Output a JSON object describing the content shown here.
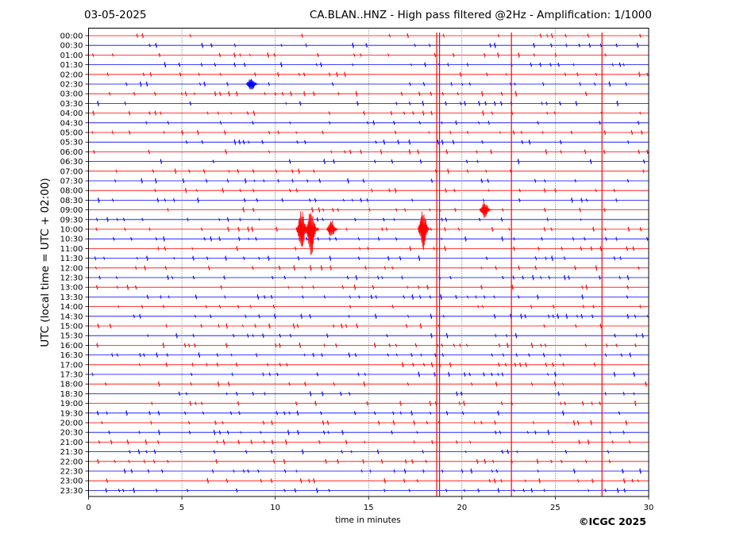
{
  "header": {
    "date": "03-05-2025",
    "title": "CA.BLAN..HNZ - High pass filtered @2Hz - Amplification: 1/1000"
  },
  "footer": {
    "copyright": "©ICGC 2025"
  },
  "colors": {
    "red_trace": "#ff0000",
    "blue_trace": "#0000ff",
    "grid": "#000000",
    "background": "#ffffff"
  },
  "chart_data": {
    "type": "line",
    "title": "CA.BLAN..HNZ - High pass filtered @2Hz - Amplification: 1/1000",
    "xlabel": "time in minutes",
    "ylabel": "UTC (local time = UTC + 02:00)",
    "xlim": [
      0,
      30
    ],
    "xticks": [
      "0",
      "5",
      "10",
      "15",
      "20",
      "25",
      "30"
    ],
    "vertical_gridlines_minutes": [
      5,
      10,
      15,
      20,
      25
    ],
    "grid": "vertical dotted",
    "rows": [
      "00:00",
      "00:30",
      "01:00",
      "01:30",
      "02:00",
      "02:30",
      "03:00",
      "03:30",
      "04:00",
      "04:30",
      "05:00",
      "05:30",
      "06:00",
      "06:30",
      "07:00",
      "07:30",
      "08:00",
      "08:30",
      "09:00",
      "09:30",
      "10:00",
      "10:30",
      "11:00",
      "11:30",
      "12:00",
      "12:30",
      "13:00",
      "13:30",
      "14:00",
      "14:30",
      "15:00",
      "15:30",
      "16:00",
      "16:30",
      "17:00",
      "17:30",
      "18:00",
      "18:30",
      "19:00",
      "19:30",
      "20:00",
      "20:30",
      "21:00",
      "21:30",
      "22:00",
      "22:30",
      "23:00",
      "23:30"
    ],
    "row_colors": [
      "red",
      "blue"
    ],
    "events": [
      {
        "row": "10:00",
        "minute": 11.5,
        "amplitude": 0.9
      },
      {
        "row": "10:00",
        "minute": 12.0,
        "amplitude": 1.2
      },
      {
        "row": "10:00",
        "minute": 13.1,
        "amplitude": 0.4
      },
      {
        "row": "10:00",
        "minute": 18.0,
        "amplitude": 0.9
      },
      {
        "row": "09:00",
        "minute": 21.3,
        "amplitude": 0.4
      },
      {
        "row": "02:30",
        "minute": 8.8,
        "amplitude": 0.3
      }
    ],
    "spikes": [
      {
        "minute": 18.65,
        "from_row": "00:00",
        "to_row": "23:30"
      },
      {
        "minute": 18.8,
        "from_row": "00:00",
        "to_row": "23:30"
      },
      {
        "minute": 22.65,
        "from_row": "00:00",
        "to_row": "23:30"
      },
      {
        "minute": 27.5,
        "from_row": "00:00",
        "to_row": "23:30"
      }
    ]
  }
}
